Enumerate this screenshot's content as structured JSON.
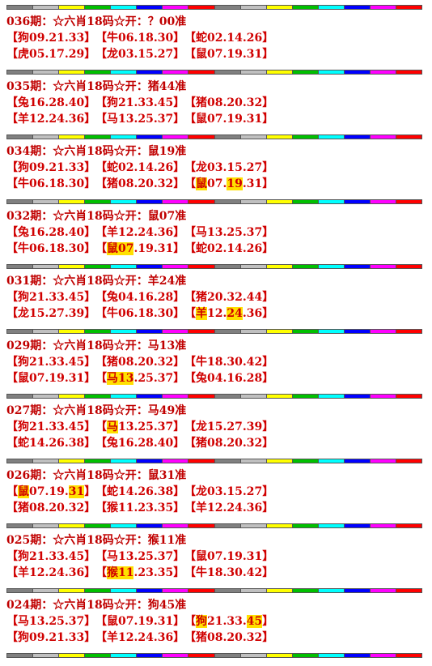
{
  "blocks": [
    {
      "header": "036期：☆六肖18码☆开：？00准",
      "rows": [
        [
          {
            "parts": [
              "【狗09.21.33】"
            ],
            "hl": []
          },
          {
            "parts": [
              "【牛06.18.30】"
            ],
            "hl": []
          },
          {
            "parts": [
              "【蛇02.14.26】"
            ],
            "hl": []
          }
        ],
        [
          {
            "parts": [
              "【虎05.17.29】"
            ],
            "hl": []
          },
          {
            "parts": [
              "【龙03.15.27】"
            ],
            "hl": []
          },
          {
            "parts": [
              "【鼠07.19.31】"
            ],
            "hl": []
          }
        ]
      ]
    },
    {
      "header": "035期：☆六肖18码☆开：猪44准",
      "rows": [
        [
          {
            "parts": [
              "【兔16.28.40】"
            ],
            "hl": []
          },
          {
            "parts": [
              "【狗21.33.45】"
            ],
            "hl": []
          },
          {
            "parts": [
              "【猪08.20.32】"
            ],
            "hl": []
          }
        ],
        [
          {
            "parts": [
              "【羊12.24.36】"
            ],
            "hl": []
          },
          {
            "parts": [
              "【马13.25.37】"
            ],
            "hl": []
          },
          {
            "parts": [
              "【鼠07.19.31】"
            ],
            "hl": []
          }
        ]
      ]
    },
    {
      "header": "034期：☆六肖18码☆开：鼠19准",
      "rows": [
        [
          {
            "parts": [
              "【狗09.21.33】"
            ],
            "hl": []
          },
          {
            "parts": [
              "【蛇02.14.26】"
            ],
            "hl": []
          },
          {
            "parts": [
              "【龙03.15.27】"
            ],
            "hl": []
          }
        ],
        [
          {
            "parts": [
              "【牛06.18.30】"
            ],
            "hl": []
          },
          {
            "parts": [
              "【猪08.20.32】"
            ],
            "hl": []
          },
          {
            "parts": [
              "【",
              "鼠",
              "07.",
              "19",
              ".31】"
            ],
            "hl": [
              1,
              3
            ]
          }
        ]
      ]
    },
    {
      "header": "032期：☆六肖18码☆开：鼠07准",
      "rows": [
        [
          {
            "parts": [
              "【兔16.28.40】"
            ],
            "hl": []
          },
          {
            "parts": [
              "【羊12.24.36】"
            ],
            "hl": []
          },
          {
            "parts": [
              "【马13.25.37】"
            ],
            "hl": []
          }
        ],
        [
          {
            "parts": [
              "【牛06.18.30】"
            ],
            "hl": []
          },
          {
            "parts": [
              "【",
              "鼠07",
              ".19.31】"
            ],
            "hl": [
              1
            ]
          },
          {
            "parts": [
              "【蛇02.14.26】"
            ],
            "hl": []
          }
        ]
      ]
    },
    {
      "header": "031期：☆六肖18码☆开：羊24准",
      "rows": [
        [
          {
            "parts": [
              "【狗21.33.45】"
            ],
            "hl": []
          },
          {
            "parts": [
              "【兔04.16.28】"
            ],
            "hl": []
          },
          {
            "parts": [
              "【猪20.32.44】"
            ],
            "hl": []
          }
        ],
        [
          {
            "parts": [
              "【龙15.27.39】"
            ],
            "hl": []
          },
          {
            "parts": [
              "【牛06.18.30】"
            ],
            "hl": []
          },
          {
            "parts": [
              "【",
              "羊",
              "12.",
              "24",
              ".36】"
            ],
            "hl": [
              1,
              3
            ]
          }
        ]
      ]
    },
    {
      "header": "029期：☆六肖18码☆开：马13准",
      "rows": [
        [
          {
            "parts": [
              "【狗21.33.45】"
            ],
            "hl": []
          },
          {
            "parts": [
              "【猪08.20.32】"
            ],
            "hl": []
          },
          {
            "parts": [
              "【牛18.30.42】"
            ],
            "hl": []
          }
        ],
        [
          {
            "parts": [
              "【鼠07.19.31】"
            ],
            "hl": []
          },
          {
            "parts": [
              "【",
              "马13",
              ".25.37】"
            ],
            "hl": [
              1
            ]
          },
          {
            "parts": [
              "【兔04.16.28】"
            ],
            "hl": []
          }
        ]
      ]
    },
    {
      "header": "027期：☆六肖18码☆开：马49准",
      "rows": [
        [
          {
            "parts": [
              "【狗21.33.45】"
            ],
            "hl": []
          },
          {
            "parts": [
              "【",
              "马",
              "13.25.37】"
            ],
            "hl": [
              1
            ]
          },
          {
            "parts": [
              "【龙15.27.39】"
            ],
            "hl": []
          }
        ],
        [
          {
            "parts": [
              "【蛇14.26.38】"
            ],
            "hl": []
          },
          {
            "parts": [
              "【兔16.28.40】"
            ],
            "hl": []
          },
          {
            "parts": [
              "【猪08.20.32】"
            ],
            "hl": []
          }
        ]
      ]
    },
    {
      "header": "026期：☆六肖18码☆开：鼠31准",
      "rows": [
        [
          {
            "parts": [
              "【",
              "鼠",
              "07.19.",
              "31",
              "】"
            ],
            "hl": [
              1,
              3
            ]
          },
          {
            "parts": [
              "【蛇14.26.38】"
            ],
            "hl": []
          },
          {
            "parts": [
              "【龙03.15.27】"
            ],
            "hl": []
          }
        ],
        [
          {
            "parts": [
              "【猪08.20.32】"
            ],
            "hl": []
          },
          {
            "parts": [
              "【猴11.23.35】"
            ],
            "hl": []
          },
          {
            "parts": [
              "【羊12.24.36】"
            ],
            "hl": []
          }
        ]
      ]
    },
    {
      "header": "025期：☆六肖18码☆开：猴11准",
      "rows": [
        [
          {
            "parts": [
              "【狗21.33.45】"
            ],
            "hl": []
          },
          {
            "parts": [
              "【马13.25.37】"
            ],
            "hl": []
          },
          {
            "parts": [
              "【鼠07.19.31】"
            ],
            "hl": []
          }
        ],
        [
          {
            "parts": [
              "【羊12.24.36】"
            ],
            "hl": []
          },
          {
            "parts": [
              "【",
              "猴11",
              ".23.35】"
            ],
            "hl": [
              1
            ]
          },
          {
            "parts": [
              "【牛18.30.42】"
            ],
            "hl": []
          }
        ]
      ]
    },
    {
      "header": "024期：☆六肖18码☆开：狗45准",
      "rows": [
        [
          {
            "parts": [
              "【马13.25.37】"
            ],
            "hl": []
          },
          {
            "parts": [
              "【鼠07.19.31】"
            ],
            "hl": []
          },
          {
            "parts": [
              "【",
              "狗",
              "21.33.",
              "45",
              "】"
            ],
            "hl": [
              1,
              3
            ]
          }
        ],
        [
          {
            "parts": [
              "【狗09.21.33】"
            ],
            "hl": []
          },
          {
            "parts": [
              "【羊12.24.36】"
            ],
            "hl": []
          },
          {
            "parts": [
              "【猪08.20.32】"
            ],
            "hl": []
          }
        ]
      ]
    }
  ]
}
